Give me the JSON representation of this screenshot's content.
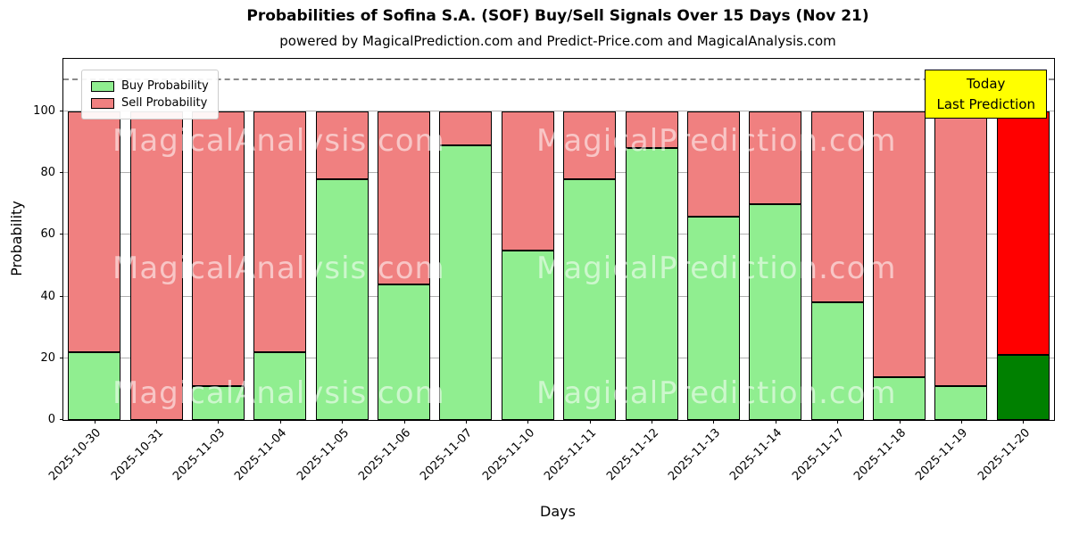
{
  "header": {
    "title": "Probabilities of Sofina S.A. (SOF) Buy/Sell Signals Over 15 Days (Nov 21)",
    "subtitle": "powered by MagicalPrediction.com and Predict-Price.com and MagicalAnalysis.com"
  },
  "legend": {
    "buy_label": "Buy Probability",
    "sell_label": "Sell Probability"
  },
  "annotation": {
    "line1": "Today",
    "line2": "Last Prediction"
  },
  "axes": {
    "xlabel": "Days",
    "ylabel": "Probability"
  },
  "watermarks": {
    "left": "MagicalAnalysis.com",
    "right": "MagicalPrediction.com"
  },
  "colors": {
    "buy": "#90ee90",
    "sell": "#f08080",
    "buy_last": "#008000",
    "sell_last": "#ff0000",
    "annotation_bg": "#ffff00",
    "grid": "#b0b0b0",
    "dashed": "#8a8a8a"
  },
  "chart_data": {
    "type": "bar",
    "stacked": true,
    "title": "Probabilities of Sofina S.A. (SOF) Buy/Sell Signals Over 15 Days (Nov 21)",
    "xlabel": "Days",
    "ylabel": "Probability",
    "categories": [
      "2025-10-30",
      "2025-10-31",
      "2025-11-03",
      "2025-11-04",
      "2025-11-05",
      "2025-11-06",
      "2025-11-07",
      "2025-11-10",
      "2025-11-11",
      "2025-11-12",
      "2025-11-13",
      "2025-11-14",
      "2025-11-17",
      "2025-11-18",
      "2025-11-19",
      "2025-11-20"
    ],
    "series": [
      {
        "name": "Buy Probability",
        "values": [
          22,
          0,
          11,
          22,
          78,
          44,
          89,
          55,
          78,
          88,
          66,
          70,
          38,
          14,
          11,
          21
        ]
      },
      {
        "name": "Sell Probability",
        "values": [
          78,
          100,
          89,
          78,
          22,
          56,
          11,
          45,
          22,
          12,
          34,
          30,
          62,
          86,
          89,
          79
        ]
      }
    ],
    "yticks": [
      0,
      20,
      40,
      60,
      80,
      100
    ],
    "ylim": [
      0,
      117
    ],
    "dashed_line_y": 110,
    "grid": true,
    "legend_position": "upper left",
    "last_bar_highlighted": true
  }
}
